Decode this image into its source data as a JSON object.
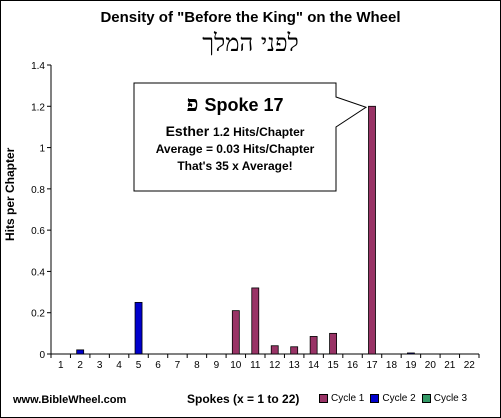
{
  "chart_data": {
    "type": "bar",
    "title": "Density of  \"Before the King\"  on the Wheel",
    "subtitle": "לפני המלך",
    "xlabel": "Spokes (x = 1 to 22)",
    "ylabel": "Hits per Chapter",
    "ylim": [
      0,
      1.4
    ],
    "yticks": [
      "0",
      "0.2",
      "0.4",
      "0.6",
      "0.8",
      "1",
      "1.2",
      "1.4"
    ],
    "categories": [
      "1",
      "2",
      "3",
      "4",
      "5",
      "6",
      "7",
      "8",
      "9",
      "10",
      "11",
      "12",
      "13",
      "14",
      "15",
      "16",
      "17",
      "18",
      "19",
      "20",
      "21",
      "22"
    ],
    "series": [
      {
        "name": "Cycle 1",
        "color": "#993366",
        "values": [
          0,
          0,
          0,
          0,
          0,
          0,
          0,
          0,
          0,
          0.21,
          0.32,
          0.04,
          0.035,
          0.085,
          0.1,
          0,
          1.2,
          0,
          0,
          0,
          0,
          0
        ]
      },
      {
        "name": "Cycle 2",
        "color": "#0000cc",
        "values": [
          0,
          0.02,
          0,
          0,
          0.25,
          0,
          0,
          0,
          0,
          0,
          0,
          0,
          0,
          0,
          0,
          0,
          0,
          0,
          0.005,
          0,
          0,
          0
        ]
      },
      {
        "name": "Cycle 3",
        "color": "#339966",
        "values": [
          0,
          0,
          0,
          0,
          0,
          0,
          0,
          0,
          0,
          0,
          0,
          0,
          0,
          0,
          0,
          0,
          0,
          0,
          0,
          0,
          0,
          0
        ]
      }
    ],
    "grid": false,
    "legend": "bottom-right"
  },
  "callout": {
    "letter": "פ",
    "spoke": "Spoke 17",
    "book": "Esther",
    "book_hits": "1.2 Hits/Chapter",
    "average": "Average = 0.03 Hits/Chapter",
    "ratio": "That's 35 x Average!"
  },
  "footer": {
    "url": "www.BibleWheel.com"
  },
  "legend": {
    "items": [
      "Cycle 1",
      "Cycle 2",
      "Cycle 3"
    ],
    "colors": [
      "#993366",
      "#0000cc",
      "#339966"
    ]
  }
}
